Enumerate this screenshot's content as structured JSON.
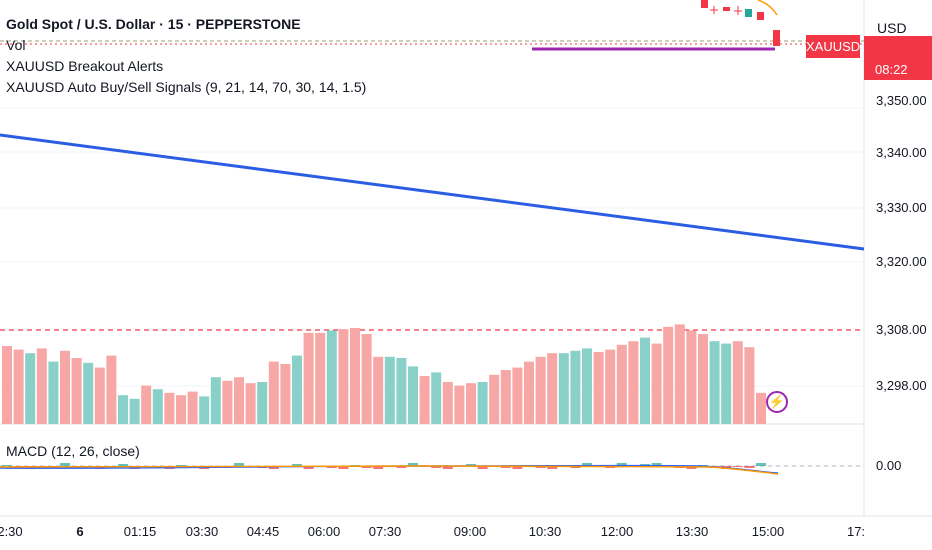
{
  "legend": {
    "title": "Gold Spot / U.S. Dollar · 15 · PEPPERSTONE",
    "line2": "Vol",
    "line3": "XAUUSD Breakout Alerts",
    "line4": "XAUUSD Auto Buy/Sell Signals (9, 21, 14, 70, 30, 14, 1.5)"
  },
  "macd_label": "MACD (12, 26, close)",
  "axis": {
    "currency": "USD",
    "symbol_tag": "XAUUSD",
    "countdown": "08:22",
    "price_labels": [
      "3,350.00",
      "3,340.00",
      "3,330.00",
      "3,320.00",
      "3,308.00",
      "3,298.00"
    ],
    "macd_labels": [
      "0.00"
    ],
    "time_labels": [
      "2:30",
      "6",
      "01:15",
      "03:30",
      "04:45",
      "06:00",
      "07:30",
      "09:00",
      "10:30",
      "12:00",
      "13:30",
      "15:00",
      "17:"
    ]
  },
  "colors": {
    "up": "#89d0c8",
    "down": "#f7a7a5",
    "candle_down": "#f23645",
    "trend_line": "#2a5de3",
    "level_line": "#9c27b0",
    "dashed_line": "#f23645",
    "macd_line": "#2962ff",
    "signal_line": "#ff9800"
  },
  "chart_data": {
    "type": "bar",
    "title": "Volume",
    "series": [
      {
        "name": "Vol",
        "values": [
          6.5,
          6.2,
          5.9,
          6.3,
          5.2,
          6.1,
          5.5,
          5.1,
          4.7,
          5.7,
          2.4,
          2.1,
          3.2,
          2.9,
          2.6,
          2.4,
          2.7,
          2.3,
          3.9,
          3.6,
          3.9,
          3.4,
          3.5,
          5.2,
          5.0,
          5.7,
          7.6,
          7.6,
          7.8,
          7.9,
          8.0,
          7.5,
          5.6,
          5.6,
          5.5,
          4.8,
          4.0,
          4.3,
          3.5,
          3.2,
          3.4,
          3.5,
          4.1,
          4.5,
          4.7,
          5.2,
          5.6,
          5.9,
          5.9,
          6.1,
          6.3,
          6.0,
          6.2,
          6.6,
          6.9,
          7.2,
          6.7,
          8.1,
          8.3,
          7.8,
          7.5,
          6.9,
          6.7,
          6.9,
          6.4,
          2.6
        ],
        "colors": [
          "down",
          "down",
          "up",
          "down",
          "up",
          "down",
          "down",
          "up",
          "down",
          "down",
          "up",
          "up",
          "down",
          "up",
          "down",
          "down",
          "down",
          "up",
          "up",
          "down",
          "down",
          "down",
          "up",
          "down",
          "down",
          "up",
          "down",
          "down",
          "up",
          "down",
          "down",
          "down",
          "down",
          "up",
          "up",
          "up",
          "down",
          "up",
          "down",
          "down",
          "down",
          "up",
          "down",
          "down",
          "down",
          "down",
          "down",
          "down",
          "up",
          "up",
          "up",
          "down",
          "down",
          "down",
          "down",
          "up",
          "down",
          "down",
          "down",
          "down",
          "down",
          "up",
          "up",
          "down",
          "down",
          "down"
        ]
      }
    ],
    "trend_line": {
      "from": 3347.8,
      "to": 3322.3
    },
    "resistance_level": 3308.3,
    "macd_zero": 0.0
  }
}
